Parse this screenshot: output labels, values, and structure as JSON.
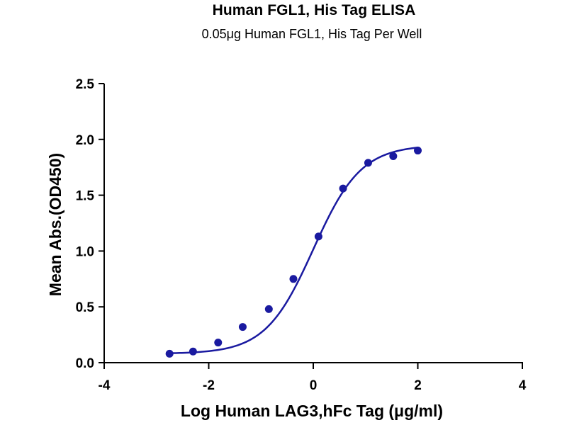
{
  "chart_data": {
    "type": "scatter",
    "title": "Human FGL1, His Tag ELISA",
    "subtitle": "0.05μg Human FGL1, His Tag Per Well",
    "xlabel": "Log Human LAG3,hFc Tag (μg/ml)",
    "ylabel": "Mean Abs.(OD450)",
    "xlim": [
      -4,
      4
    ],
    "ylim": [
      0,
      2.5
    ],
    "x_ticks": [
      "-4",
      "-2",
      "0",
      "2",
      "4"
    ],
    "y_ticks": [
      "0.0",
      "0.5",
      "1.0",
      "1.5",
      "2.0",
      "2.5"
    ],
    "grid": false,
    "legend": "none",
    "series": [
      {
        "points": [
          {
            "x": -2.75,
            "y": 0.08
          },
          {
            "x": -2.3,
            "y": 0.1
          },
          {
            "x": -1.82,
            "y": 0.18
          },
          {
            "x": -1.35,
            "y": 0.32
          },
          {
            "x": -0.85,
            "y": 0.48
          },
          {
            "x": -0.38,
            "y": 0.75
          },
          {
            "x": 0.1,
            "y": 1.13
          },
          {
            "x": 0.57,
            "y": 1.56
          },
          {
            "x": 1.05,
            "y": 1.79
          },
          {
            "x": 1.53,
            "y": 1.85
          },
          {
            "x": 2.0,
            "y": 1.9
          }
        ]
      }
    ],
    "fit_curve": {
      "model": "4PL",
      "bottom": 0.08,
      "top": 1.95,
      "logEC50": 0.0,
      "hill": 0.95,
      "x_range": [
        -2.75,
        2.0
      ]
    },
    "colors": {
      "series": "#1a1aa0",
      "axis": "#000000"
    }
  }
}
